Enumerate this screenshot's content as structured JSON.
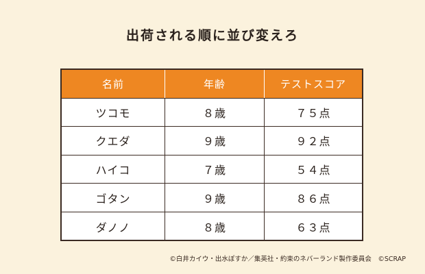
{
  "title": "出荷される順に並び変えろ",
  "table": {
    "columns": [
      "名前",
      "年齢",
      "テストスコア"
    ],
    "rows": [
      [
        "ツコモ",
        "８歳",
        "７５点"
      ],
      [
        "クエダ",
        "９歳",
        "９２点"
      ],
      [
        "ハイコ",
        "７歳",
        "５４点"
      ],
      [
        "ゴタン",
        "９歳",
        "８６点"
      ],
      [
        "ダノノ",
        "８歳",
        "６３点"
      ]
    ]
  },
  "credit": "©白井カイウ・出水ぽすか／集英社・約束のネバーランド製作委員会　©SCRAP",
  "colors": {
    "background": "#fbf2dd",
    "header": "#ee8722",
    "border": "#3a2a22"
  }
}
